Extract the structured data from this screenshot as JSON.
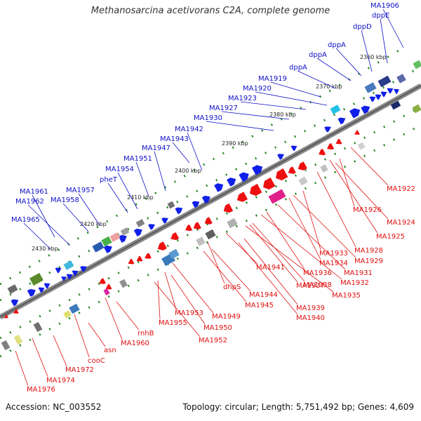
{
  "title": "Methanosarcina acetivorans C2A, complete genome",
  "accession": "Accession: NC_003552",
  "stats": "Topology: circular; Length: 5,751,492 bp; Genes: 4,609",
  "colors": {
    "forward_label": "#1010c8",
    "reverse_label": "#e01010",
    "backbone": "#777777",
    "tick": "#2a8a2a"
  },
  "scale": [
    {
      "label": "2360 kbp"
    },
    {
      "label": "2370 kbp"
    },
    {
      "label": "2380 kbp"
    },
    {
      "label": "2390 kbp"
    },
    {
      "label": "2400 kbp"
    },
    {
      "label": "2410 kbp"
    },
    {
      "label": "2420 kbp"
    },
    {
      "label": "2430 kbp"
    }
  ],
  "forward_genes": [
    "MA1906",
    "dppE",
    "dppD",
    "dppA",
    "dppA",
    "dppA",
    "MA1919",
    "MA1920",
    "MA1923",
    "MA1927",
    "MA1930",
    "MA1942",
    "MA1943",
    "MA1947",
    "MA1951",
    "MA1954",
    "pheT",
    "MA1957",
    "MA1958",
    "MA1961",
    "MA1962",
    "MA1965"
  ],
  "reverse_genes": [
    "MA1922",
    "MA1926",
    "MA1924",
    "MA1925",
    "MA1928",
    "MA1933",
    "MA1929",
    "MA1934",
    "MA1931",
    "MA1936",
    "MA1932",
    "MA1938",
    "MA1935",
    "MA1937",
    "MA1941",
    "MA1939",
    "MA1940",
    "dhpS",
    "MA1944",
    "MA1945",
    "MA1949",
    "MA1953",
    "MA1950",
    "MA1955",
    "MA1952",
    "rnhB",
    "MA1960",
    "asn",
    "cooC",
    "MA1972",
    "MA1974",
    "MA1976"
  ]
}
